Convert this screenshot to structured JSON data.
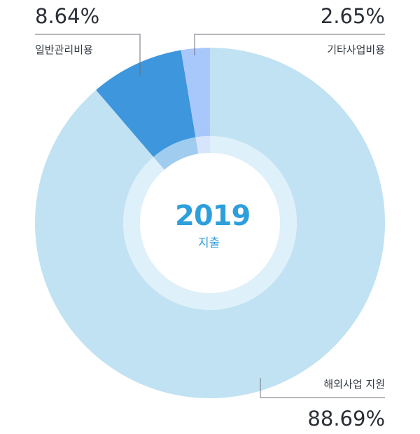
{
  "chart_data": {
    "type": "pie",
    "center": {
      "year": "2019",
      "subtitle": "지출"
    },
    "slices": [
      {
        "label": "해외사업 지원",
        "value": 88.69,
        "value_text": "88.69%",
        "color": "#c0e2f3",
        "inner_color": "#def0f9"
      },
      {
        "label": "일반관리비용",
        "value": 8.64,
        "value_text": "8.64%",
        "color": "#3e96dc",
        "inner_color": "#a0ccef"
      },
      {
        "label": "기타사업비용",
        "value": 2.65,
        "value_text": "2.65%",
        "color": "#a8c8fb",
        "inner_color": "#d6e4fc"
      }
    ]
  }
}
